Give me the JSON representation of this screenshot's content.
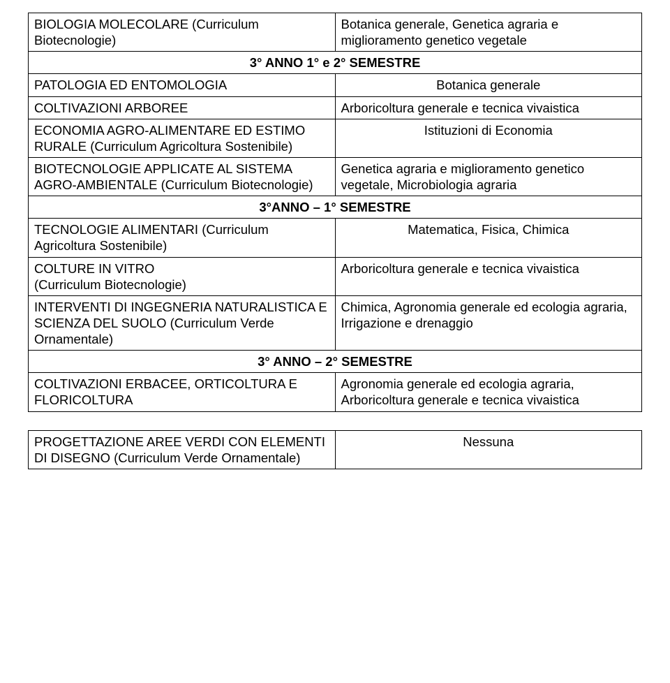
{
  "table1": {
    "rows": [
      {
        "left": "BIOLOGIA MOLECOLARE (Curriculum Biotecnologie)",
        "right": "Botanica generale, Genetica agraria e miglioramento genetico vegetale",
        "centerRight": false
      },
      {
        "section": "3° ANNO 1° e 2° SEMESTRE"
      },
      {
        "left": "PATOLOGIA ED ENTOMOLOGIA",
        "right": "Botanica generale",
        "centerRight": true
      },
      {
        "left": "COLTIVAZIONI ARBOREE",
        "right": "Arboricoltura generale e tecnica vivaistica",
        "centerRight": false
      },
      {
        "left": "ECONOMIA AGRO-ALIMENTARE ED ESTIMO RURALE (Curriculum Agricoltura Sostenibile)",
        "right": "Istituzioni di Economia",
        "centerRight": true
      },
      {
        "left": "BIOTECNOLOGIE APPLICATE AL SISTEMA AGRO-AMBIENTALE (Curriculum Biotecnologie)",
        "right": "Genetica agraria e miglioramento genetico vegetale, Microbiologia agraria",
        "centerRight": false
      },
      {
        "section": "3°ANNO – 1° SEMESTRE"
      },
      {
        "left": "TECNOLOGIE ALIMENTARI (Curriculum Agricoltura Sostenibile)",
        "right": "Matematica, Fisica, Chimica",
        "centerRight": true
      },
      {
        "left": "COLTURE IN VITRO\n(Curriculum Biotecnologie)",
        "right": "Arboricoltura generale e tecnica vivaistica",
        "centerRight": false
      },
      {
        "left": "INTERVENTI DI INGEGNERIA NATURALISTICA E SCIENZA DEL SUOLO (Curriculum Verde Ornamentale)",
        "right": "Chimica, Agronomia generale ed ecologia agraria, Irrigazione e drenaggio",
        "centerRight": false
      },
      {
        "section": "3° ANNO – 2° SEMESTRE"
      },
      {
        "left": "COLTIVAZIONI ERBACEE, ORTICOLTURA E FLORICOLTURA",
        "right": "Agronomia generale ed ecologia agraria, Arboricoltura generale e tecnica vivaistica",
        "centerRight": false
      }
    ]
  },
  "table2": {
    "rows": [
      {
        "left": "PROGETTAZIONE AREE VERDI CON ELEMENTI DI DISEGNO (Curriculum Verde Ornamentale)",
        "right": "Nessuna",
        "centerRight": true
      }
    ]
  }
}
